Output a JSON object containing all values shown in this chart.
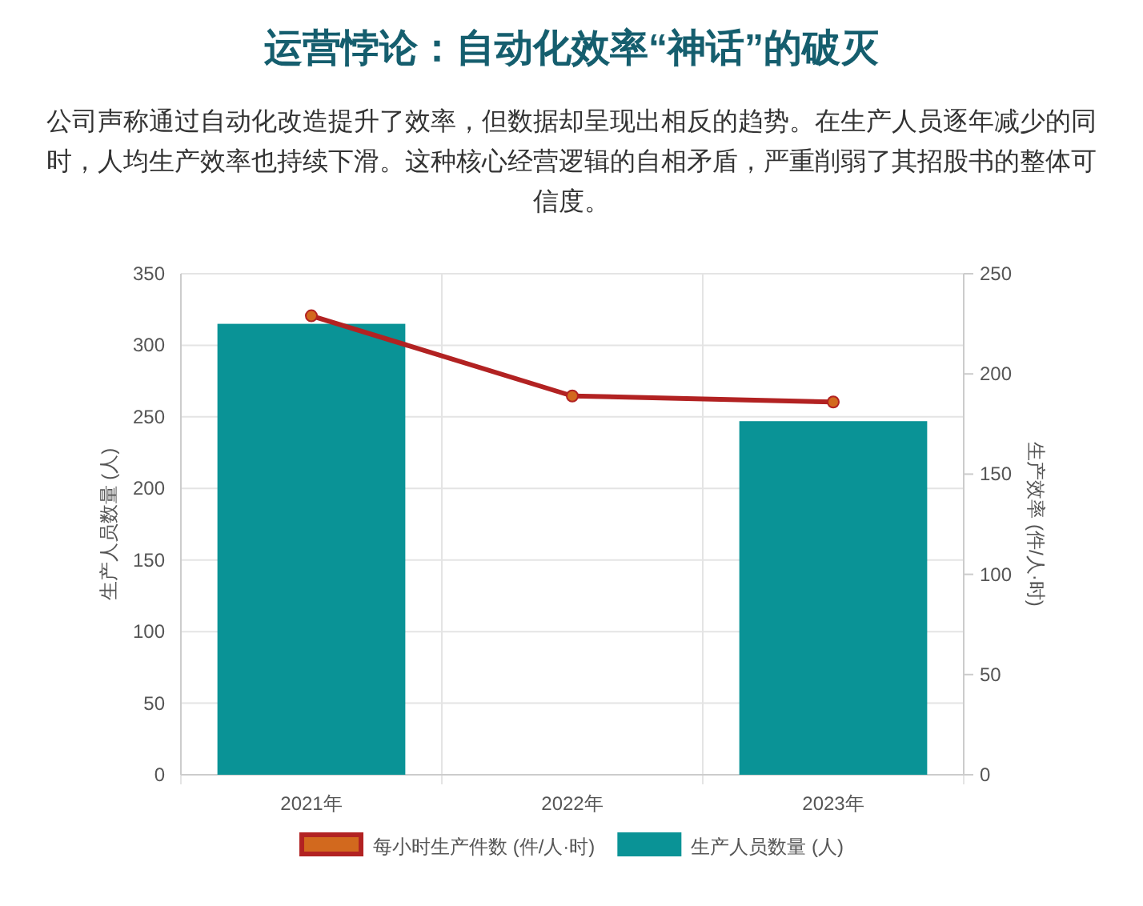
{
  "chart_data": {
    "type": "bar",
    "title": "运营悖论：自动化效率“神话”的破灭",
    "subtitle": "公司声称通过自动化改造提升了效率，但数据却呈现出相反的趋势。在生产人员逐年减少的同时，人均生产效率也持续下滑。这种核心经营逻辑的自相矛盾，严重削弱了其招股书的整体可信度。",
    "categories": [
      "2021年",
      "2022年",
      "2023年"
    ],
    "ylabel": "生产人员数量 (人)",
    "y2label": "生产效率 (件/人·时)",
    "ylim": [
      0,
      350
    ],
    "yticks": [
      0,
      50,
      100,
      150,
      200,
      250,
      300,
      350
    ],
    "y2lim": [
      0,
      250
    ],
    "y2ticks": [
      0,
      50,
      100,
      150,
      200,
      250
    ],
    "grid": true,
    "legend": "bottom",
    "series": [
      {
        "name": "每小时生产件数 (件/人·时)",
        "type": "line",
        "axis": "y2",
        "color": "#b22222",
        "colors": [
          "#d2691e",
          "#d2691e",
          "#d2691e"
        ],
        "marker": "circle",
        "line_style": "solid",
        "values": [
          229,
          189,
          186
        ]
      },
      {
        "name": "生产人员数量 (人)",
        "axis": "y",
        "color": "#0a9396",
        "values": [
          315,
          null,
          247
        ]
      }
    ]
  }
}
